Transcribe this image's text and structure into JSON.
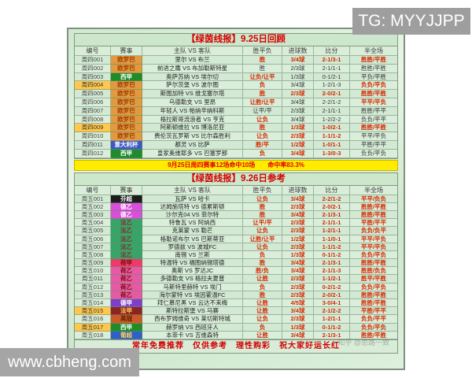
{
  "watermarks": {
    "tg": "TG: MYYJJPP",
    "site": "www.cbheng.com",
    "faint": "知乎 @思路一致"
  },
  "colors": {
    "title_red": "#d40000",
    "value_red": "#d42a00",
    "value_dark": "#333333",
    "banner_yellow": "#ffec00",
    "row_highlight": "#ffc84d",
    "page_green": "#d7ecd7"
  },
  "league_styles": {
    "europa": {
      "bg": "#e09a40",
      "fg": "#a33c00"
    },
    "laliga": {
      "bg": "#1e8c28",
      "fg": "#ffffff"
    },
    "coppa": {
      "bg": "#3c58c8",
      "fg": "#ffffff"
    },
    "finnish": {
      "bg": "#1c1c1c",
      "fg": "#ffffff"
    },
    "b2": {
      "bg": "#d84fd8",
      "fg": "#ffffff"
    },
    "l2": {
      "bg": "#37a468",
      "fg": "#8a2a2a"
    },
    "ered": {
      "bg": "#ee3a6a",
      "fg": "#7a0a0a"
    },
    "eerste": {
      "bg": "#e65aa5",
      "fg": "#7a0a0a"
    },
    "b1": {
      "bg": "#7d3fc9",
      "fg": "#ffffff"
    },
    "l1": {
      "bg": "#8c2424",
      "fg": "#ffd24d"
    },
    "champ": {
      "bg": "#cc5a28",
      "fg": "#5a1c00"
    },
    "primeira": {
      "bg": "#2e60c8",
      "fg": "#ffd24d"
    }
  },
  "table1": {
    "title": "【绿茵线报】9.25日回顾",
    "columns": [
      "编号",
      "赛事",
      "主队 VS 客队",
      "胜平负",
      "进球数",
      "比分",
      "半全场"
    ],
    "rows": [
      {
        "id": "周四001",
        "lgk": "europa",
        "lg": "欧罗巴",
        "m": "里尔 VS 布兰",
        "wdl": "胜",
        "g": "3/4球",
        "s": "2-1/3-1",
        "hf": "胜胜/平胜",
        "red": [
          1,
          1,
          1,
          1
        ],
        "hl": 0
      },
      {
        "id": "周四002",
        "lgk": "europa",
        "lg": "欧罗巴",
        "m": "前进之鹰 VS 布加勒斯特星",
        "wdl": "胜",
        "g": "2/3球",
        "s": "2-1/1-1",
        "hf": "胜胜/平胜",
        "red": [
          0,
          0,
          0,
          0
        ],
        "hl": 0
      },
      {
        "id": "周四003",
        "lgk": "laliga",
        "lg": "西甲",
        "m": "奥萨苏纳 VS 埃尔切",
        "wdl": "让负/让平",
        "g": "1/3球",
        "s": "0-1/2-1",
        "hf": "平负/平胜",
        "red": [
          1,
          0,
          0,
          0
        ],
        "hl": 0
      },
      {
        "id": "周四004",
        "lgk": "europa",
        "lg": "欧罗巴",
        "m": "萨尔茨堡 VS 波尔图",
        "wdl": "负",
        "g": "3/4球",
        "s": "1-2/1-3",
        "hf": "负负/平负",
        "red": [
          1,
          0,
          0,
          1
        ],
        "hl": 1
      },
      {
        "id": "周四005",
        "lgk": "europa",
        "lg": "欧罗巴",
        "m": "斯图加特 VS 维戈塞尔塔",
        "wdl": "胜",
        "g": "2/3球",
        "s": "2-0/2-1",
        "hf": "胜胜/平胜",
        "red": [
          1,
          1,
          1,
          1
        ],
        "hl": 0
      },
      {
        "id": "周四006",
        "lgk": "europa",
        "lg": "欧罗巴",
        "m": "乌德勒支 VS 里昂",
        "wdl": "让胜/让平",
        "g": "3/4球",
        "s": "2-2/1-2",
        "hf": "平平/平负",
        "red": [
          1,
          0,
          0,
          1
        ],
        "hl": 0
      },
      {
        "id": "周四007",
        "lgk": "europa",
        "lg": "欧罗巴",
        "m": "年轻人 VS 帕纳辛纳科斯",
        "wdl": "让平/平",
        "g": "2/3球",
        "s": "2-1/1-1",
        "hf": "胜胜/平平",
        "red": [
          0,
          0,
          0,
          0
        ],
        "hl": 0
      },
      {
        "id": "周四008",
        "lgk": "europa",
        "lg": "欧罗巴",
        "m": "格拉斯哥流浪者 VS 亨克",
        "wdl": "让负",
        "g": "3/4球",
        "s": "1-2/2-2",
        "hf": "负负/平平",
        "red": [
          1,
          0,
          0,
          0
        ],
        "hl": 0
      },
      {
        "id": "周四009",
        "lgk": "europa",
        "lg": "欧罗巴",
        "m": "阿斯顿维拉 VS 博洛尼亚",
        "wdl": "胜",
        "g": "1/3球",
        "s": "1-0/2-1",
        "hf": "胜胜/平胜",
        "red": [
          1,
          1,
          1,
          1
        ],
        "hl": 1
      },
      {
        "id": "周四010",
        "lgk": "europa",
        "lg": "欧罗巴",
        "m": "费伦茨瓦罗斯 VS 比尔森胜利",
        "wdl": "让负",
        "g": "2/3球",
        "s": "1-1/1-2",
        "hf": "平平/平负",
        "red": [
          1,
          1,
          1,
          0
        ],
        "hl": 0
      },
      {
        "id": "周四011",
        "lgk": "coppa",
        "lg": "意大利杯",
        "m": "都灵 VS 比萨",
        "wdl": "胜/平",
        "g": "1/2球",
        "s": "1-0/1-1",
        "hf": "平胜/平平",
        "red": [
          1,
          1,
          1,
          0
        ],
        "hl": 0
      },
      {
        "id": "周四012",
        "lgk": "laliga",
        "lg": "西甲",
        "m": "皇家奥维耶多 VS 巴塞罗那",
        "wdl": "负",
        "g": "3/4球",
        "s": "1-3/0-3",
        "hf": "负负/平负",
        "red": [
          1,
          1,
          1,
          0
        ],
        "hl": 0
      }
    ]
  },
  "mid_banner": "9月25日周四赛事12场命中10场　　命中率83.3%",
  "table2": {
    "title": "【绿茵线报】9.26日参考",
    "columns": [
      "编号",
      "赛事",
      "主队 VS 客队",
      "胜平负",
      "进球数",
      "比分",
      "半全场"
    ],
    "rows": [
      {
        "id": "周五001",
        "lgk": "finnish",
        "lg": "芬超",
        "m": "瓦萨 VS 哈卡",
        "wdl": "让负",
        "g": "3/4球",
        "s": "2-2/1-2",
        "hf": "平平/负负",
        "red": [
          1,
          1,
          1,
          1
        ],
        "hl": 0
      },
      {
        "id": "周五002",
        "lgk": "b2",
        "lg": "德乙",
        "m": "达姆施塔特 VS 德累斯顿",
        "wdl": "胜",
        "g": "2/3球",
        "s": "2-0/2-1",
        "hf": "胜胜/平胜",
        "red": [
          1,
          1,
          1,
          1
        ],
        "hl": 0
      },
      {
        "id": "周五003",
        "lgk": "b2",
        "lg": "德乙",
        "m": "沙尔克04 VS 菲尔特",
        "wdl": "胜",
        "g": "3/4球",
        "s": "2-1/3-1",
        "hf": "胜胜/平胜",
        "red": [
          1,
          1,
          1,
          1
        ],
        "hl": 0
      },
      {
        "id": "周五004",
        "lgk": "l2",
        "lg": "法乙",
        "m": "特鲁瓦 VS 阿纳西",
        "wdl": "让平/平",
        "g": "2/3球",
        "s": "2-1/1-1",
        "hf": "平胜/平平",
        "red": [
          1,
          1,
          1,
          1
        ],
        "hl": 0
      },
      {
        "id": "周五005",
        "lgk": "l2",
        "lg": "法乙",
        "m": "克莱蒙 VS 勒芒",
        "wdl": "让负",
        "g": "2/3球",
        "s": "1-2/1-1",
        "hf": "负负/负平",
        "red": [
          1,
          1,
          1,
          1
        ],
        "hl": 0
      },
      {
        "id": "周五006",
        "lgk": "l2",
        "lg": "法乙",
        "m": "格勒诺布尔 VS 巴斯蒂亚",
        "wdl": "让胜/让平",
        "g": "1/2球",
        "s": "1-1/0-1",
        "hf": "平平/平负",
        "red": [
          1,
          1,
          1,
          1
        ],
        "hl": 0
      },
      {
        "id": "周五007",
        "lgk": "l2",
        "lg": "法乙",
        "m": "罗德兹 VS 波城FC",
        "wdl": "让负",
        "g": "2/3球",
        "s": "1-1/1-2",
        "hf": "平平/平负",
        "red": [
          1,
          1,
          1,
          1
        ],
        "hl": 0
      },
      {
        "id": "周五008",
        "lgk": "l2",
        "lg": "法乙",
        "m": "南锡 VS 兰斯",
        "wdl": "负",
        "g": "1/3球",
        "s": "0-1/1-2",
        "hf": "负负/平负",
        "red": [
          1,
          1,
          1,
          1
        ],
        "hl": 0
      },
      {
        "id": "周五009",
        "lgk": "ered",
        "lg": "荷甲",
        "m": "特温特 VS 福图纳锡塔德",
        "wdl": "胜",
        "g": "3/4球",
        "s": "2-1/3-1",
        "hf": "胜胜/平胜",
        "red": [
          1,
          1,
          1,
          1
        ],
        "hl": 0
      },
      {
        "id": "周五010",
        "lgk": "eerste",
        "lg": "荷乙",
        "m": "奥斯 VS 罗达JC",
        "wdl": "胜/负",
        "g": "3/4球",
        "s": "2-1/1-3",
        "hf": "胜胜/负负",
        "red": [
          1,
          1,
          1,
          1
        ],
        "hl": 0
      },
      {
        "id": "周五011",
        "lgk": "eerste",
        "lg": "荷乙",
        "m": "多德勒支 VS 格拉夫夏普",
        "wdl": "让胜",
        "g": "2/3球",
        "s": "1-1/2-1",
        "hf": "胜平/平胜",
        "red": [
          1,
          1,
          1,
          1
        ],
        "hl": 0
      },
      {
        "id": "周五012",
        "lgk": "eerste",
        "lg": "荷乙",
        "m": "马斯特里赫特 VS 埃门",
        "wdl": "负",
        "g": "2/3球",
        "s": "0-2/1-2",
        "hf": "负负/平负",
        "red": [
          1,
          1,
          1,
          1
        ],
        "hl": 0
      },
      {
        "id": "周五013",
        "lgk": "eerste",
        "lg": "荷乙",
        "m": "海尔蒙特 VS 埃因霍温FC",
        "wdl": "胜",
        "g": "2/3球",
        "s": "2-0/2-1",
        "hf": "胜胜/平胜",
        "red": [
          1,
          1,
          1,
          1
        ],
        "hl": 0
      },
      {
        "id": "周五014",
        "lgk": "b1",
        "lg": "德甲",
        "m": "拜仁慕尼黑 VS 云达不来梅",
        "wdl": "让胜",
        "g": "4/5球",
        "s": "3-0/4-1",
        "hf": "胜胜/平胜",
        "red": [
          1,
          1,
          1,
          1
        ],
        "hl": 0
      },
      {
        "id": "周五015",
        "lgk": "l1",
        "lg": "法甲",
        "m": "斯特拉斯堡 VS 马赛",
        "wdl": "让胜",
        "g": "3/4球",
        "s": "2-1/2-2",
        "hf": "平胜/平平",
        "red": [
          1,
          1,
          1,
          1
        ],
        "hl": 1
      },
      {
        "id": "周五016",
        "lgk": "champ",
        "lg": "英冠",
        "m": "西布罗姆维奇 VS 莱切斯特城",
        "wdl": "让负",
        "g": "2/3球",
        "s": "1-2/1-1",
        "hf": "负负/平平",
        "red": [
          1,
          1,
          1,
          1
        ],
        "hl": 0
      },
      {
        "id": "周五017",
        "lgk": "laliga",
        "lg": "西甲",
        "m": "赫罗纳 VS 西班牙人",
        "wdl": "负",
        "g": "1/3球",
        "s": "0-1/1-2",
        "hf": "负负/平负",
        "red": [
          1,
          1,
          1,
          1
        ],
        "hl": 1
      },
      {
        "id": "周五018",
        "lgk": "primeira",
        "lg": "葡超",
        "m": "本菲卡 VS 吉维森特",
        "wdl": "让胜",
        "g": "3/4球",
        "s": "2-1/3-1",
        "hf": "胜胜/平胜",
        "red": [
          1,
          1,
          1,
          1
        ],
        "hl": 0
      }
    ]
  },
  "bottom_banner": "常年免费推荐　仅供参考　理性购彩　祝大家好运长红"
}
